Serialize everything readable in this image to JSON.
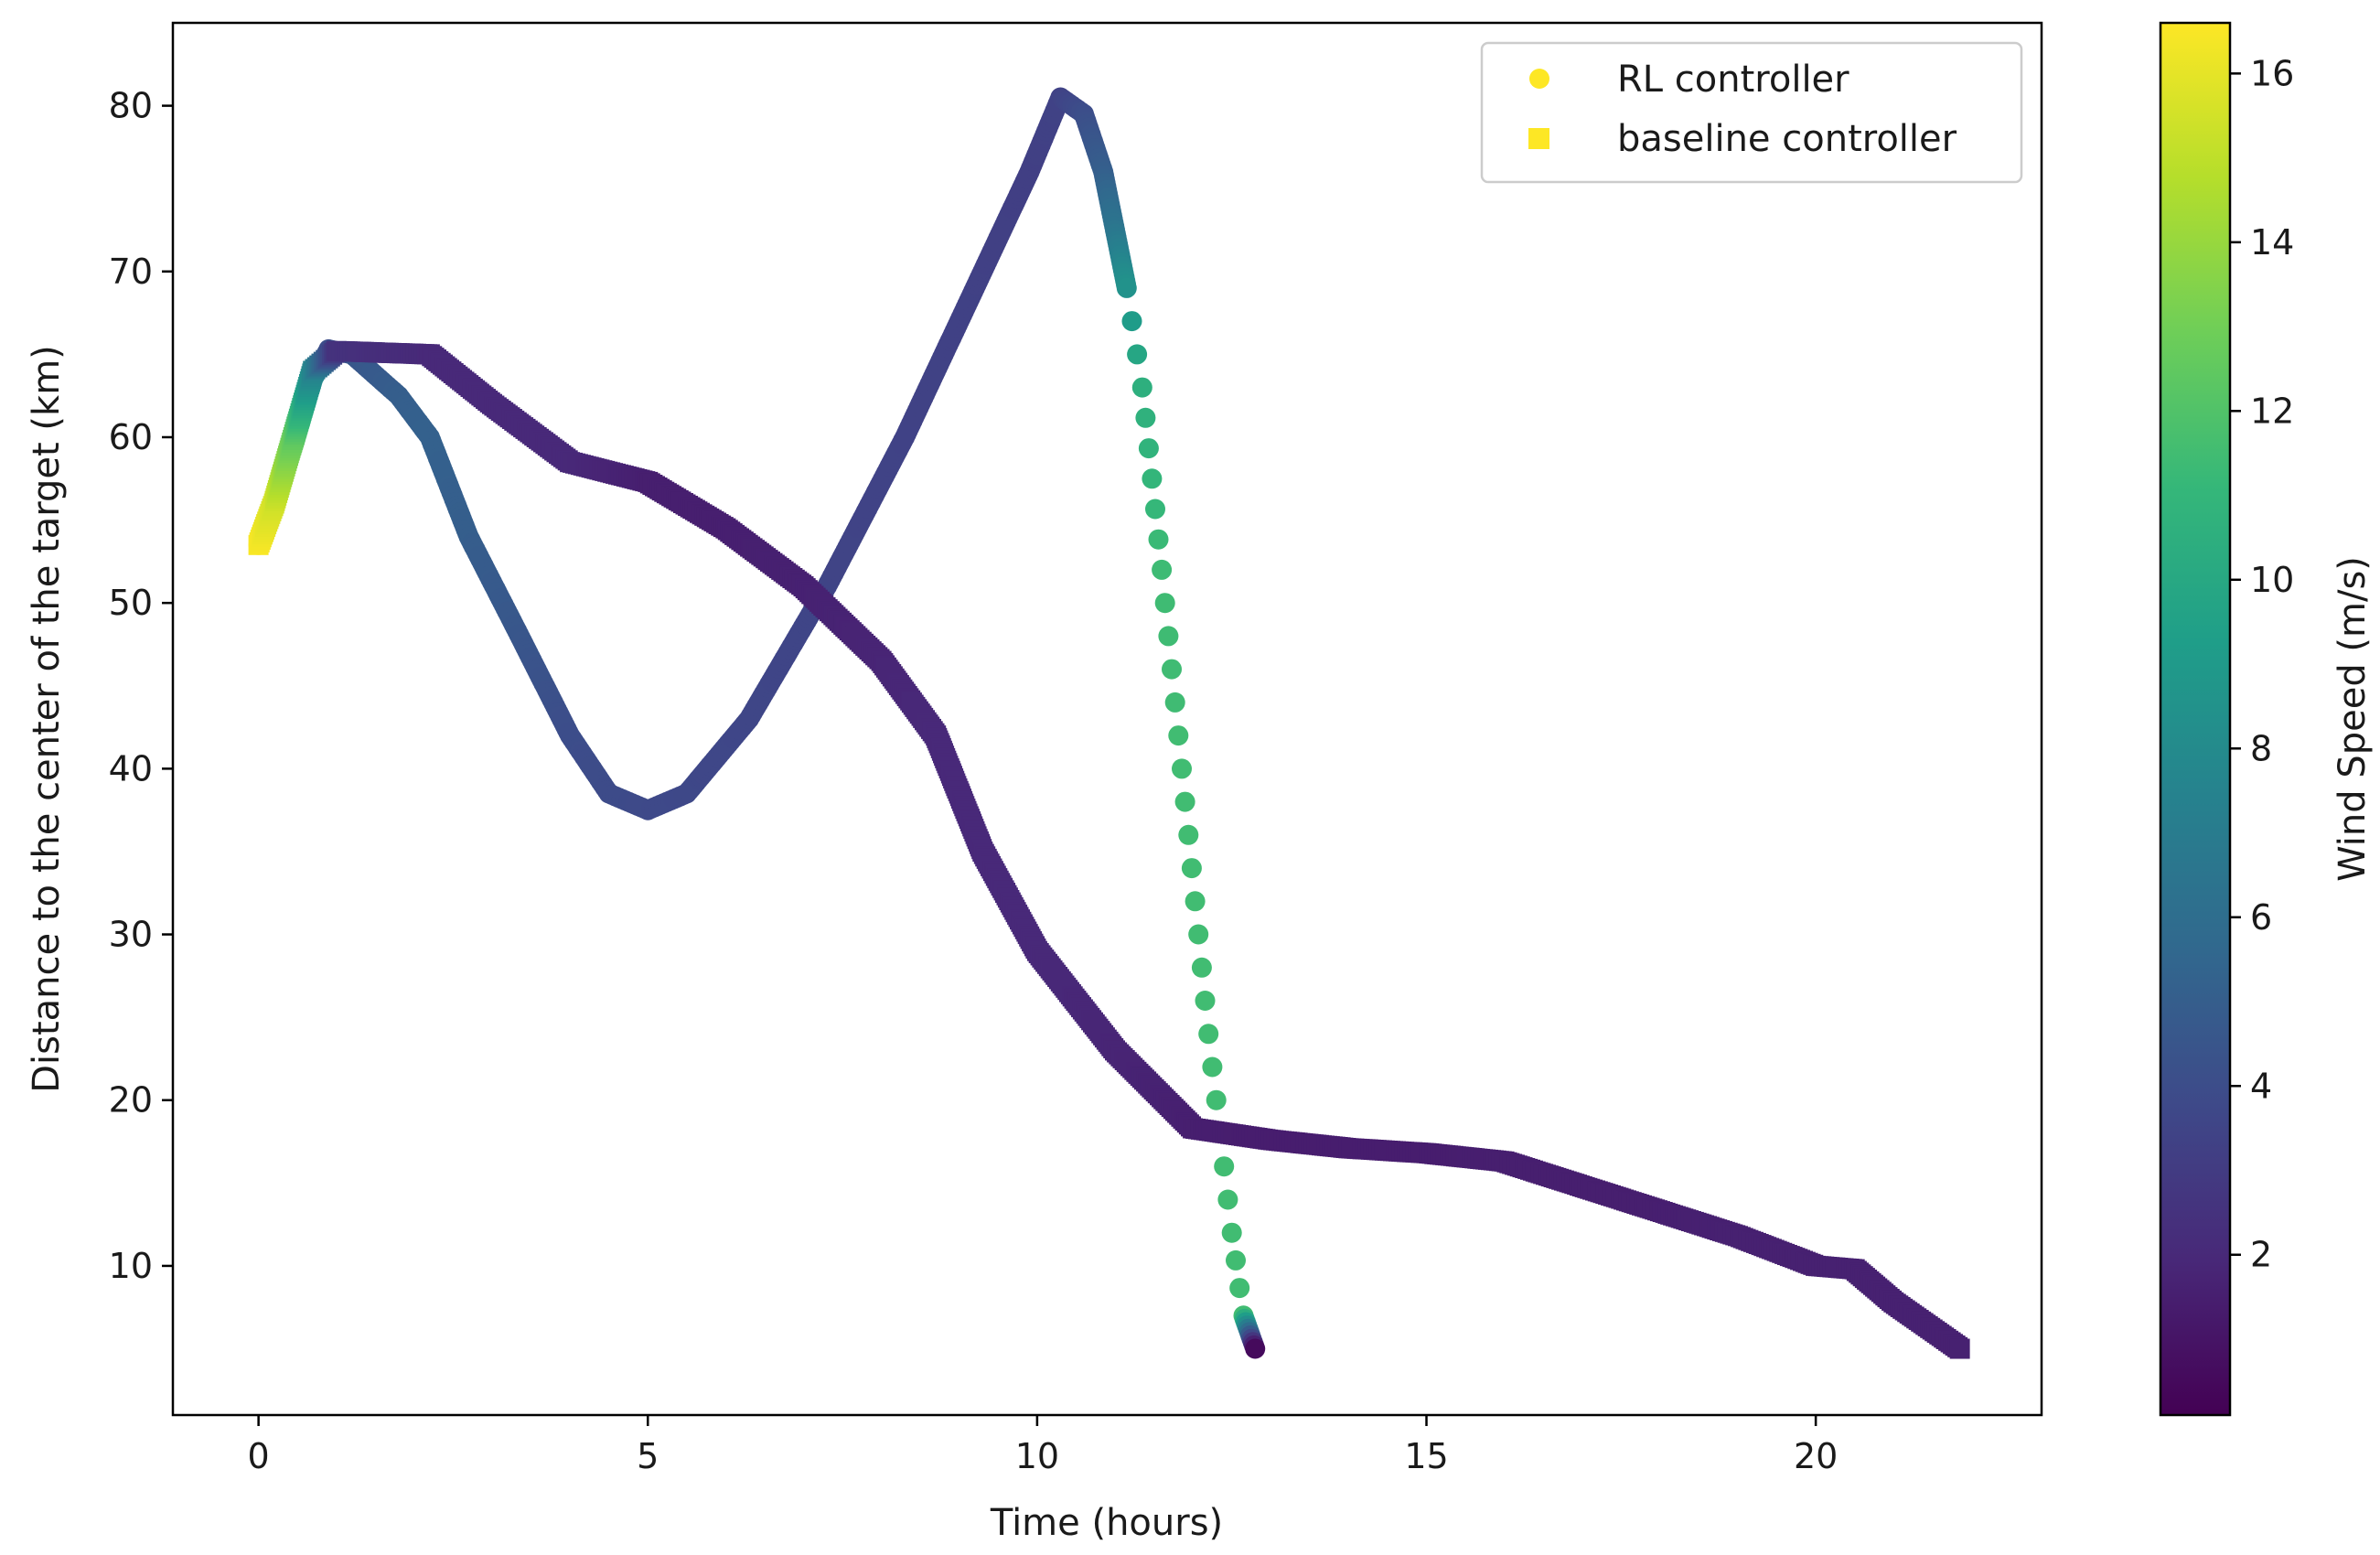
{
  "chart_data": {
    "type": "scatter",
    "title": "",
    "xlabel": "Time (hours)",
    "ylabel": "Distance to the center of the target (km)",
    "xlim": [
      -1.1,
      22.9
    ],
    "ylim": [
      1,
      85
    ],
    "x_ticks": [
      0,
      5,
      10,
      15,
      20
    ],
    "y_ticks": [
      10,
      20,
      30,
      40,
      50,
      60,
      70,
      80
    ],
    "grid": false,
    "legend": {
      "location": "upper right",
      "entries": [
        {
          "label": "RL controller",
          "marker": "circle"
        },
        {
          "label": "baseline controller",
          "marker": "square"
        }
      ]
    },
    "colorbar": {
      "label": "Wind Speed (m/s)",
      "colormap": "viridis",
      "range": [
        0.1,
        16.6
      ],
      "ticks": [
        2,
        4,
        6,
        8,
        10,
        12,
        14,
        16
      ]
    },
    "colormap_stops": [
      "#440154",
      "#482878",
      "#3e4989",
      "#31688e",
      "#26828e",
      "#1f9e89",
      "#35b779",
      "#6ece58",
      "#b5de2b",
      "#fde725"
    ],
    "series": [
      {
        "name": "RL controller",
        "marker": "circle",
        "points": [
          {
            "t": 0.0,
            "d": 53.5,
            "w": 16.4
          },
          {
            "t": 0.2,
            "d": 56.0,
            "w": 15.2
          },
          {
            "t": 0.45,
            "d": 59.5,
            "w": 12.5
          },
          {
            "t": 0.7,
            "d": 63.5,
            "w": 8.5
          },
          {
            "t": 0.9,
            "d": 65.3,
            "w": 4.0
          },
          {
            "t": 1.2,
            "d": 65.0,
            "w": 4.5
          },
          {
            "t": 1.8,
            "d": 62.5,
            "w": 5.0
          },
          {
            "t": 2.2,
            "d": 60.0,
            "w": 5.2
          },
          {
            "t": 2.7,
            "d": 54.0,
            "w": 5.0
          },
          {
            "t": 3.3,
            "d": 48.5,
            "w": 4.6
          },
          {
            "t": 4.0,
            "d": 42.0,
            "w": 4.0
          },
          {
            "t": 4.5,
            "d": 38.5,
            "w": 3.9
          },
          {
            "t": 5.0,
            "d": 37.5,
            "w": 3.8
          },
          {
            "t": 5.5,
            "d": 38.5,
            "w": 3.7
          },
          {
            "t": 6.3,
            "d": 43.0,
            "w": 3.6
          },
          {
            "t": 7.3,
            "d": 51.0,
            "w": 3.5
          },
          {
            "t": 8.3,
            "d": 60.0,
            "w": 3.4
          },
          {
            "t": 9.3,
            "d": 70.0,
            "w": 3.3
          },
          {
            "t": 9.9,
            "d": 76.0,
            "w": 3.2
          },
          {
            "t": 10.3,
            "d": 80.5,
            "w": 3.4
          },
          {
            "t": 10.6,
            "d": 79.5,
            "w": 4.0
          },
          {
            "t": 10.85,
            "d": 76.0,
            "w": 5.0
          },
          {
            "t": 11.0,
            "d": 72.5,
            "w": 6.5
          },
          {
            "t": 11.15,
            "d": 69.0,
            "w": 8.5
          },
          {
            "t": 11.35,
            "d": 63.0,
            "w": 10.5
          },
          {
            "t": 11.6,
            "d": 52.0,
            "w": 11.4
          },
          {
            "t": 11.9,
            "d": 38.0,
            "w": 11.5
          },
          {
            "t": 12.2,
            "d": 24.0,
            "w": 11.5
          },
          {
            "t": 12.5,
            "d": 12.0,
            "w": 11.5
          },
          {
            "t": 12.65,
            "d": 7.0,
            "w": 11.5
          },
          {
            "t": 12.8,
            "d": 5.0,
            "w": 0.5
          }
        ]
      },
      {
        "name": "baseline controller",
        "marker": "square",
        "points": [
          {
            "t": 0.0,
            "d": 53.5,
            "w": 16.5
          },
          {
            "t": 0.2,
            "d": 56.0,
            "w": 15.5
          },
          {
            "t": 0.45,
            "d": 60.0,
            "w": 12.5
          },
          {
            "t": 0.7,
            "d": 64.0,
            "w": 7.5
          },
          {
            "t": 1.0,
            "d": 65.2,
            "w": 2.5
          },
          {
            "t": 2.2,
            "d": 65.0,
            "w": 2.0
          },
          {
            "t": 3.0,
            "d": 62.0,
            "w": 2.0
          },
          {
            "t": 4.0,
            "d": 58.5,
            "w": 2.0
          },
          {
            "t": 5.0,
            "d": 57.3,
            "w": 1.5
          },
          {
            "t": 6.0,
            "d": 54.5,
            "w": 1.5
          },
          {
            "t": 7.0,
            "d": 51.0,
            "w": 1.6
          },
          {
            "t": 8.0,
            "d": 46.5,
            "w": 1.8
          },
          {
            "t": 8.7,
            "d": 42.0,
            "w": 2.0
          },
          {
            "t": 9.3,
            "d": 35.0,
            "w": 2.0
          },
          {
            "t": 10.0,
            "d": 29.0,
            "w": 2.0
          },
          {
            "t": 11.0,
            "d": 23.0,
            "w": 1.8
          },
          {
            "t": 12.0,
            "d": 18.3,
            "w": 1.5
          },
          {
            "t": 13.0,
            "d": 17.6,
            "w": 1.4
          },
          {
            "t": 14.0,
            "d": 17.1,
            "w": 1.4
          },
          {
            "t": 15.0,
            "d": 16.8,
            "w": 1.4
          },
          {
            "t": 16.0,
            "d": 16.3,
            "w": 1.5
          },
          {
            "t": 17.0,
            "d": 14.8,
            "w": 1.5
          },
          {
            "t": 18.0,
            "d": 13.3,
            "w": 1.5
          },
          {
            "t": 19.0,
            "d": 11.8,
            "w": 1.6
          },
          {
            "t": 20.0,
            "d": 10.0,
            "w": 1.6
          },
          {
            "t": 20.5,
            "d": 9.8,
            "w": 1.6
          },
          {
            "t": 21.0,
            "d": 7.8,
            "w": 1.6
          },
          {
            "t": 21.85,
            "d": 5.0,
            "w": 1.6
          }
        ]
      }
    ]
  }
}
